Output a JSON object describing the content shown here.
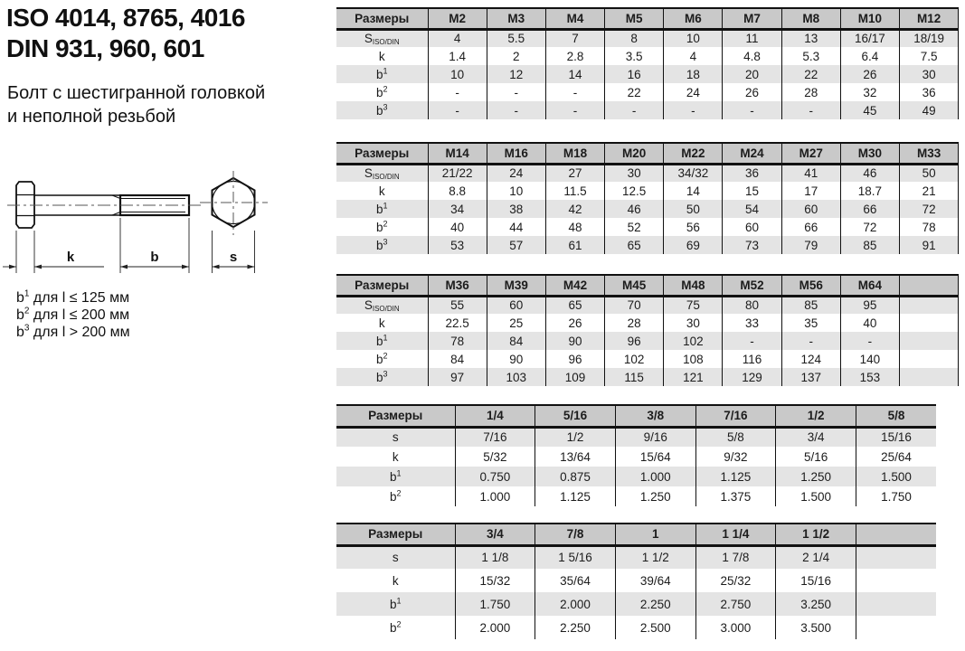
{
  "header": {
    "iso_line": "ISO 4014, 8765, 4016",
    "din_line": "DIN 931, 960, 601",
    "description_line1": "Болт с шестигранной головкой",
    "description_line2": "и неполной резьбой"
  },
  "notes": [
    {
      "base": "b",
      "sup": "1",
      "rest": " для l ≤ 125 мм"
    },
    {
      "base": "b",
      "sup": "2",
      "rest": " для l ≤ 200 мм"
    },
    {
      "base": "b",
      "sup": "3",
      "rest": " для l > 200 мм"
    }
  ],
  "drawing": {
    "k_label": "k",
    "b_label": "b",
    "s_label": "s"
  },
  "colors": {
    "header_bg": "#c9c9c9",
    "stripe_bg": "#e4e4e4",
    "line": "#111111"
  },
  "tables": [
    {
      "name": "metric-m2-m12",
      "header_label": "Размеры",
      "columns": [
        "M2",
        "M3",
        "M4",
        "M5",
        "M6",
        "M7",
        "M8",
        "M10",
        "M12"
      ],
      "rows": [
        {
          "label": "S",
          "label_sub": "ISO/DIN",
          "cells": [
            "4",
            "5.5",
            "7",
            "8",
            "10",
            "11",
            "13",
            "16/17",
            "18/19"
          ]
        },
        {
          "label": "k",
          "cells": [
            "1.4",
            "2",
            "2.8",
            "3.5",
            "4",
            "4.8",
            "5.3",
            "6.4",
            "7.5"
          ]
        },
        {
          "label": "b",
          "label_sup": "1",
          "cells": [
            "10",
            "12",
            "14",
            "16",
            "18",
            "20",
            "22",
            "26",
            "30"
          ]
        },
        {
          "label": "b",
          "label_sup": "2",
          "cells": [
            "-",
            "-",
            "-",
            "22",
            "24",
            "26",
            "28",
            "32",
            "36"
          ]
        },
        {
          "label": "b",
          "label_sup": "3",
          "cells": [
            "-",
            "-",
            "-",
            "-",
            "-",
            "-",
            "-",
            "45",
            "49"
          ]
        }
      ]
    },
    {
      "name": "metric-m14-m33",
      "header_label": "Размеры",
      "columns": [
        "M14",
        "M16",
        "M18",
        "M20",
        "M22",
        "M24",
        "M27",
        "M30",
        "M33"
      ],
      "rows": [
        {
          "label": "S",
          "label_sub": "ISO/DIN",
          "cells": [
            "21/22",
            "24",
            "27",
            "30",
            "34/32",
            "36",
            "41",
            "46",
            "50"
          ]
        },
        {
          "label": "k",
          "cells": [
            "8.8",
            "10",
            "11.5",
            "12.5",
            "14",
            "15",
            "17",
            "18.7",
            "21"
          ]
        },
        {
          "label": "b",
          "label_sup": "1",
          "cells": [
            "34",
            "38",
            "42",
            "46",
            "50",
            "54",
            "60",
            "66",
            "72"
          ]
        },
        {
          "label": "b",
          "label_sup": "2",
          "cells": [
            "40",
            "44",
            "48",
            "52",
            "56",
            "60",
            "66",
            "72",
            "78"
          ]
        },
        {
          "label": "b",
          "label_sup": "3",
          "cells": [
            "53",
            "57",
            "61",
            "65",
            "69",
            "73",
            "79",
            "85",
            "91"
          ]
        }
      ]
    },
    {
      "name": "metric-m36-m64",
      "header_label": "Размеры",
      "columns": [
        "M36",
        "M39",
        "M42",
        "M45",
        "M48",
        "M52",
        "M56",
        "M64",
        ""
      ],
      "rows": [
        {
          "label": "S",
          "label_sub": "ISO/DIN",
          "cells": [
            "55",
            "60",
            "65",
            "70",
            "75",
            "80",
            "85",
            "95",
            ""
          ]
        },
        {
          "label": "k",
          "cells": [
            "22.5",
            "25",
            "26",
            "28",
            "30",
            "33",
            "35",
            "40",
            ""
          ]
        },
        {
          "label": "b",
          "label_sup": "1",
          "cells": [
            "78",
            "84",
            "90",
            "96",
            "102",
            "-",
            "-",
            "-",
            ""
          ]
        },
        {
          "label": "b",
          "label_sup": "2",
          "cells": [
            "84",
            "90",
            "96",
            "102",
            "108",
            "116",
            "124",
            "140",
            ""
          ]
        },
        {
          "label": "b",
          "label_sup": "3",
          "cells": [
            "97",
            "103",
            "109",
            "115",
            "121",
            "129",
            "137",
            "153",
            ""
          ]
        }
      ]
    },
    {
      "name": "imperial-small",
      "header_label": "Размеры",
      "columns": [
        "1/4",
        "5/16",
        "3/8",
        "7/16",
        "1/2",
        "5/8"
      ],
      "rows": [
        {
          "label": "s",
          "cells": [
            "7/16",
            "1/2",
            "9/16",
            "5/8",
            "3/4",
            "15/16"
          ]
        },
        {
          "label": "k",
          "cells": [
            "5/32",
            "13/64",
            "15/64",
            "9/32",
            "5/16",
            "25/64"
          ]
        },
        {
          "label": "b",
          "label_sup": "1",
          "cells": [
            "0.750",
            "0.875",
            "1.000",
            "1.125",
            "1.250",
            "1.500"
          ]
        },
        {
          "label": "b",
          "label_sup": "2",
          "cells": [
            "1.000",
            "1.125",
            "1.250",
            "1.375",
            "1.500",
            "1.750"
          ]
        }
      ]
    },
    {
      "name": "imperial-large",
      "header_label": "Размеры",
      "columns": [
        "3/4",
        "7/8",
        "1",
        "1 1/4",
        "1 1/2",
        ""
      ],
      "rows": [
        {
          "label": "s",
          "cells": [
            "1 1/8",
            "1 5/16",
            "1 1/2",
            "1 7/8",
            "2 1/4",
            ""
          ]
        },
        {
          "label": "k",
          "cells": [
            "15/32",
            "35/64",
            "39/64",
            "25/32",
            "15/16",
            ""
          ]
        },
        {
          "label": "b",
          "label_sup": "1",
          "cells": [
            "1.750",
            "2.000",
            "2.250",
            "2.750",
            "3.250",
            ""
          ]
        },
        {
          "label": "b",
          "label_sup": "2",
          "cells": [
            "2.000",
            "2.250",
            "2.500",
            "3.000",
            "3.500",
            ""
          ]
        }
      ]
    }
  ]
}
